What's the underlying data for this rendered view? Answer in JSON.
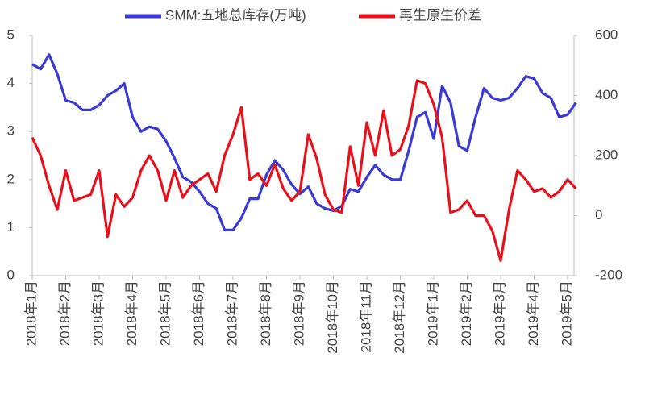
{
  "chart_data": {
    "type": "line",
    "categories": [
      "2018年1月",
      null,
      null,
      null,
      "2018年2月",
      null,
      null,
      null,
      "2018年3月",
      null,
      null,
      null,
      "2018年4月",
      null,
      null,
      null,
      "2018年5月",
      null,
      null,
      null,
      "2018年6月",
      null,
      null,
      null,
      "2018年7月",
      null,
      null,
      null,
      "2018年8月",
      null,
      null,
      null,
      "2018年9月",
      null,
      null,
      null,
      "2018年10月",
      null,
      null,
      null,
      "2018年11月",
      null,
      null,
      null,
      "2018年12月",
      null,
      null,
      null,
      "2019年1月",
      null,
      null,
      null,
      "2019年2月",
      null,
      null,
      null,
      "2019年3月",
      null,
      null,
      null,
      "2019年4月",
      null,
      null,
      null,
      "2019年5月",
      null
    ],
    "series": [
      {
        "name": "SMM:五地总库存(万吨)",
        "color": "#3a3ad6",
        "axis": "y",
        "values": [
          4.4,
          4.3,
          4.6,
          4.2,
          3.65,
          3.6,
          3.45,
          3.45,
          3.55,
          3.75,
          3.85,
          4.0,
          3.3,
          3.0,
          3.1,
          3.05,
          2.8,
          2.45,
          2.05,
          1.95,
          1.75,
          1.5,
          1.4,
          0.95,
          0.95,
          1.2,
          1.6,
          1.6,
          2.1,
          2.4,
          2.2,
          1.9,
          1.7,
          1.85,
          1.5,
          1.4,
          1.35,
          1.45,
          1.8,
          1.75,
          2.05,
          2.3,
          2.1,
          2.0,
          2.0,
          2.6,
          3.3,
          3.4,
          2.85,
          3.95,
          3.6,
          2.7,
          2.6,
          3.3,
          3.9,
          3.7,
          3.65,
          3.7,
          3.9,
          4.15,
          4.1,
          3.8,
          3.7,
          3.3,
          3.35,
          3.6
        ]
      },
      {
        "name": "再生原生价差",
        "color": "#e8101a",
        "axis": "y2",
        "values": [
          260,
          200,
          100,
          20,
          150,
          50,
          60,
          70,
          150,
          -70,
          70,
          30,
          60,
          150,
          200,
          150,
          50,
          150,
          60,
          100,
          120,
          140,
          80,
          200,
          270,
          360,
          120,
          140,
          100,
          170,
          90,
          50,
          80,
          270,
          190,
          70,
          20,
          10,
          230,
          100,
          310,
          200,
          350,
          200,
          220,
          300,
          450,
          440,
          370,
          260,
          10,
          20,
          50,
          0,
          0,
          -50,
          -150,
          20,
          150,
          120,
          80,
          90,
          60,
          80,
          120,
          90
        ]
      }
    ],
    "ylim": [
      0,
      5
    ],
    "yticks": [
      0,
      1,
      2,
      3,
      4,
      5
    ],
    "y2lim": [
      -200,
      600
    ],
    "y2ticks": [
      -200,
      0,
      200,
      400,
      600
    ],
    "grid": false,
    "legend": "top"
  }
}
